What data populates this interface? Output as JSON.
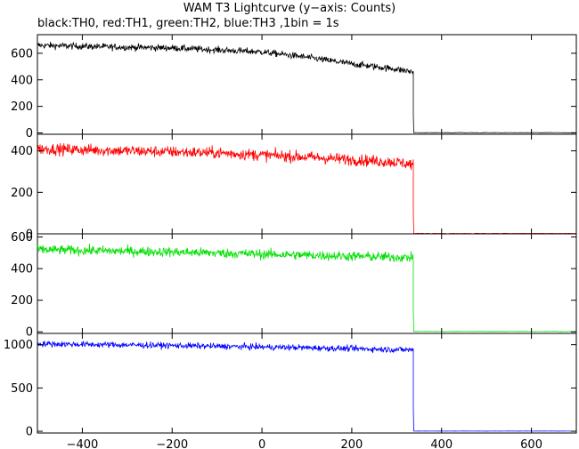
{
  "title": "WAM T3 Lightcurve (y−axis: Counts)",
  "subtitle": "black:TH0, red:TH1, green:TH2, blue:TH3 ,1bin = 1s",
  "chart_data": {
    "type": "line",
    "x_range": [
      -500,
      700
    ],
    "x_ticks": [
      -400,
      -200,
      0,
      200,
      400,
      600
    ],
    "x_tick_labels": [
      "−400",
      "−200",
      "0",
      "200",
      "400",
      "600"
    ],
    "panels": [
      {
        "series": "TH0",
        "color": "#000000",
        "ylim": [
          -10,
          740
        ],
        "y_ticks": [
          0,
          200,
          400,
          600
        ],
        "y_tick_labels": [
          "0",
          "200",
          "400",
          "600"
        ],
        "segments": [
          [
            -500,
            660
          ],
          [
            -300,
            645
          ],
          [
            -200,
            640
          ],
          [
            0,
            610
          ],
          [
            100,
            570
          ],
          [
            200,
            520
          ],
          [
            300,
            480
          ],
          [
            335,
            460
          ]
        ],
        "noise": 18,
        "drop_x": 337,
        "post_drop_level": 2
      },
      {
        "series": "TH1",
        "color": "#ff0000",
        "ylim": [
          0,
          480
        ],
        "y_ticks": [
          0,
          200,
          400
        ],
        "y_tick_labels": [
          "0",
          "200",
          "400"
        ],
        "segments": [
          [
            -500,
            410
          ],
          [
            -300,
            400
          ],
          [
            -100,
            390
          ],
          [
            100,
            370
          ],
          [
            300,
            345
          ],
          [
            335,
            335
          ]
        ],
        "noise": 20,
        "drop_x": 337,
        "post_drop_level": 2
      },
      {
        "series": "TH2",
        "color": "#00e000",
        "ylim": [
          -10,
          620
        ],
        "y_ticks": [
          0,
          200,
          400,
          600
        ],
        "y_tick_labels": [
          "0",
          "200",
          "400",
          "600"
        ],
        "segments": [
          [
            -500,
            520
          ],
          [
            -200,
            505
          ],
          [
            100,
            485
          ],
          [
            335,
            470
          ]
        ],
        "noise": 22,
        "drop_x": 337,
        "post_drop_level": 2
      },
      {
        "series": "TH3",
        "color": "#0000ff",
        "ylim": [
          -20,
          1130
        ],
        "y_ticks": [
          0,
          500,
          1000
        ],
        "y_tick_labels": [
          "0",
          "500",
          "1000"
        ],
        "segments": [
          [
            -500,
            1010
          ],
          [
            -200,
            990
          ],
          [
            100,
            965
          ],
          [
            335,
            940
          ]
        ],
        "noise": 25,
        "drop_x": 337,
        "post_drop_level": 2
      }
    ]
  }
}
